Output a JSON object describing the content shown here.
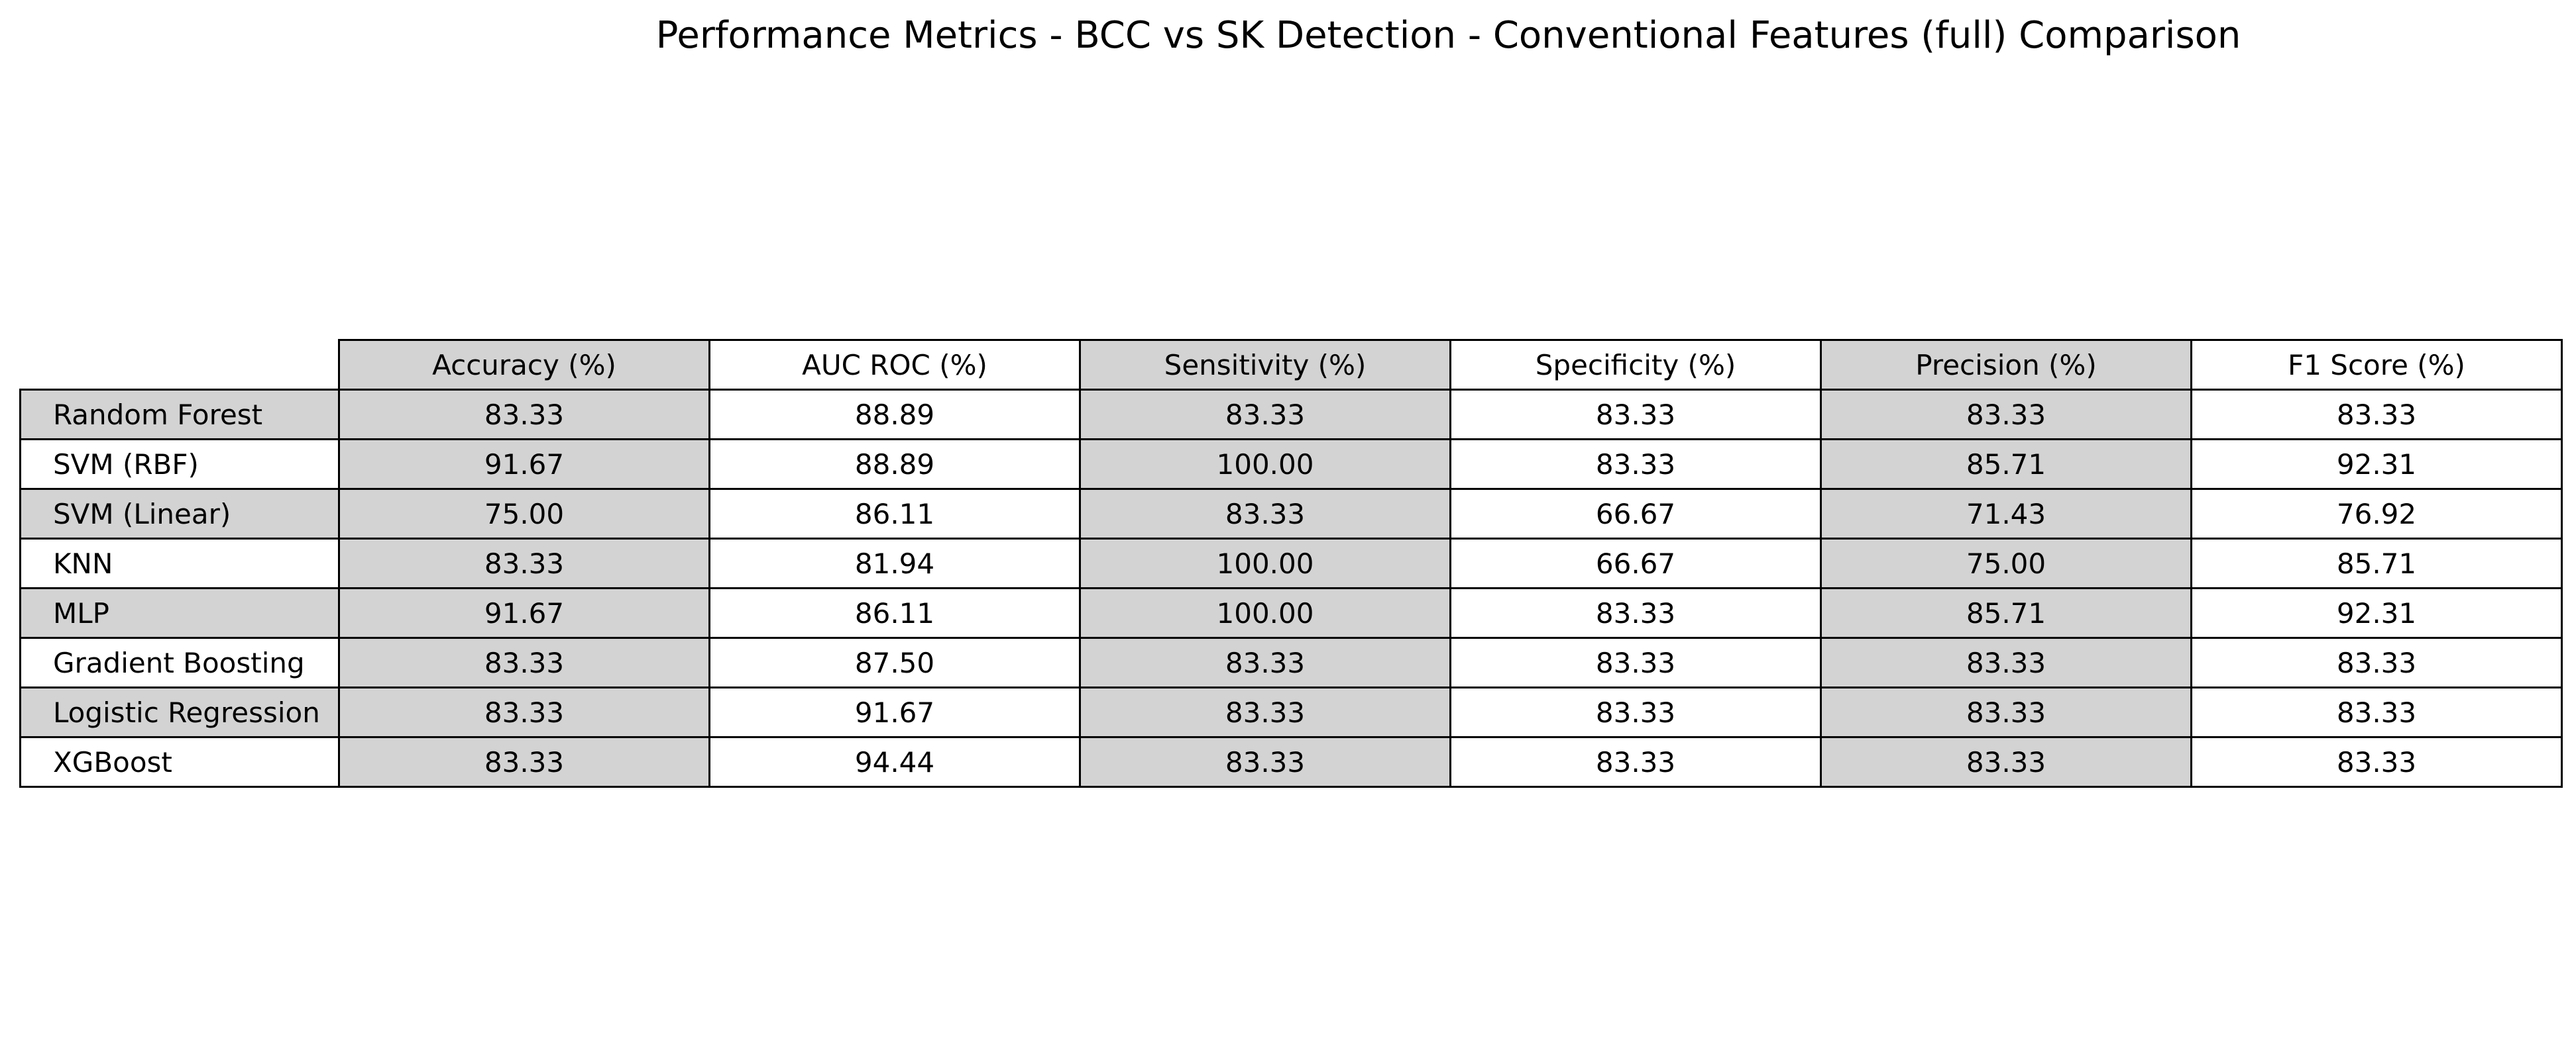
{
  "chart_data": {
    "type": "table",
    "title": "Performance Metrics - BCC vs SK Detection - Conventional Features (full) Comparison",
    "columns": [
      "Accuracy (%)",
      "AUC ROC (%)",
      "Sensitivity (%)",
      "Specificity (%)",
      "Precision (%)",
      "F1 Score (%)"
    ],
    "rows": [
      {
        "label": "Random Forest",
        "values": [
          "83.33",
          "88.89",
          "83.33",
          "83.33",
          "83.33",
          "83.33"
        ]
      },
      {
        "label": "SVM (RBF)",
        "values": [
          "91.67",
          "88.89",
          "100.00",
          "83.33",
          "85.71",
          "92.31"
        ]
      },
      {
        "label": "SVM (Linear)",
        "values": [
          "75.00",
          "86.11",
          "83.33",
          "66.67",
          "71.43",
          "76.92"
        ]
      },
      {
        "label": "KNN",
        "values": [
          "83.33",
          "81.94",
          "100.00",
          "66.67",
          "75.00",
          "85.71"
        ]
      },
      {
        "label": "MLP",
        "values": [
          "91.67",
          "86.11",
          "100.00",
          "83.33",
          "85.71",
          "92.31"
        ]
      },
      {
        "label": "Gradient Boosting",
        "values": [
          "83.33",
          "87.50",
          "83.33",
          "83.33",
          "83.33",
          "83.33"
        ]
      },
      {
        "label": "Logistic Regression",
        "values": [
          "83.33",
          "91.67",
          "83.33",
          "83.33",
          "83.33",
          "83.33"
        ]
      },
      {
        "label": "XGBoost",
        "values": [
          "83.33",
          "94.44",
          "83.33",
          "83.33",
          "83.33",
          "83.33"
        ]
      }
    ],
    "colors": {
      "shaded": "#d3d3d3",
      "plain": "#ffffff",
      "border": "#000000"
    }
  }
}
